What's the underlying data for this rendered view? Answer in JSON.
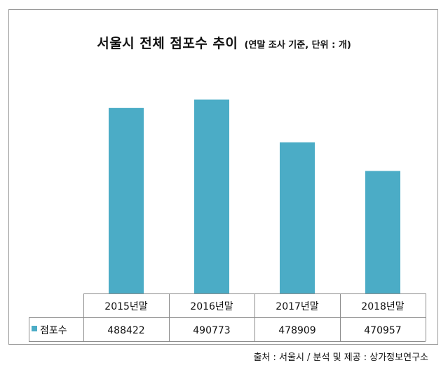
{
  "title": "서울시 전체 점포수 추이",
  "subtitle": "(연말 조사 기준, 단위 : 개)",
  "source": "출처 : 서울시 / 분석 및 제공 : 상가정보연구소",
  "chart_data": {
    "type": "bar",
    "title": "서울시 전체 점포수 추이",
    "subtitle": "(연말 조사 기준, 단위 : 개)",
    "categories": [
      "2015년말",
      "2016년말",
      "2017년말",
      "2018년말"
    ],
    "series": [
      {
        "name": "점포수",
        "values": [
          488422,
          490773,
          478909,
          470957
        ],
        "color": "#4bacc6"
      }
    ],
    "ylim": [
      437000,
      495000
    ],
    "grid": false,
    "legend": "data-table"
  }
}
